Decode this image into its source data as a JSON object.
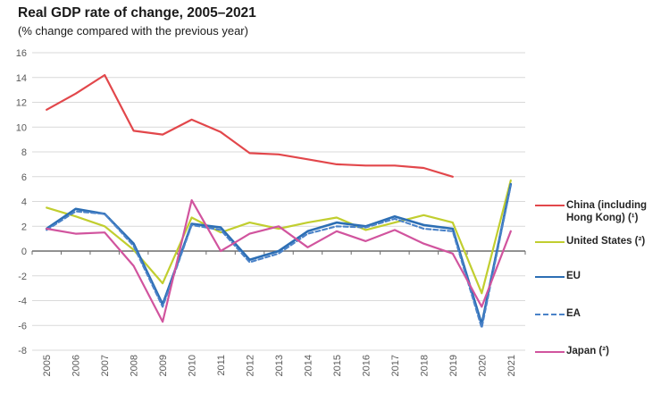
{
  "header": {
    "title": "Real GDP rate of change, 2005–2021",
    "subtitle": "(% change compared with the previous year)"
  },
  "chart_data": {
    "type": "line",
    "title": "Real GDP rate of change, 2005–2021",
    "subtitle": "(% change compared with the previous year)",
    "x": [
      "2005",
      "2006",
      "2007",
      "2008",
      "2009",
      "2010",
      "2011",
      "2012",
      "2013",
      "2014",
      "2015",
      "2016",
      "2017",
      "2018",
      "2019",
      "2020",
      "2021"
    ],
    "ylim": [
      -8,
      16
    ],
    "ytick_step": 2,
    "yticks": [
      "16",
      "14",
      "12",
      "10",
      "8",
      "6",
      "4",
      "2",
      "0",
      "-2",
      "-4",
      "-6",
      "-8"
    ],
    "grid": true,
    "legend_position": "right",
    "axis_colors": {
      "gridline": "#d9d9d9",
      "zero_axis": "#6d6d6d",
      "tick_text": "#595959"
    },
    "series": [
      {
        "id": "china",
        "name": "China (including Hong Kong) (¹)",
        "color": "#e2474b",
        "dash": null,
        "width": 2.2,
        "values": [
          11.4,
          12.7,
          14.2,
          9.7,
          9.4,
          10.6,
          9.6,
          7.9,
          7.8,
          7.4,
          7.0,
          6.9,
          6.9,
          6.7,
          6.0,
          null,
          null
        ]
      },
      {
        "id": "united-states",
        "name": "United States (²)",
        "color": "#c1ce2f",
        "dash": null,
        "width": 2.2,
        "values": [
          3.5,
          2.8,
          2.0,
          0.1,
          -2.6,
          2.7,
          1.5,
          2.3,
          1.8,
          2.3,
          2.7,
          1.7,
          2.3,
          2.9,
          2.3,
          -3.4,
          5.7
        ]
      },
      {
        "id": "eu",
        "name": "EU",
        "color": "#2c6eb4",
        "dash": null,
        "width": 2.6,
        "values": [
          1.8,
          3.4,
          3.0,
          0.6,
          -4.3,
          2.2,
          1.9,
          -0.7,
          0.0,
          1.6,
          2.3,
          2.0,
          2.8,
          2.1,
          1.8,
          -5.9,
          5.4
        ]
      },
      {
        "id": "ea",
        "name": "EA",
        "color": "#4a82c8",
        "dash": "5,3",
        "width": 2.1,
        "values": [
          1.7,
          3.2,
          3.0,
          0.4,
          -4.5,
          2.1,
          1.7,
          -0.9,
          -0.2,
          1.4,
          2.0,
          1.9,
          2.6,
          1.8,
          1.6,
          -6.2,
          5.3
        ]
      },
      {
        "id": "japan",
        "name": "Japan (²)",
        "color": "#d1549e",
        "dash": null,
        "width": 2.2,
        "values": [
          1.8,
          1.4,
          1.5,
          -1.2,
          -5.7,
          4.1,
          0.0,
          1.4,
          2.0,
          0.3,
          1.6,
          0.8,
          1.7,
          0.6,
          -0.2,
          -4.5,
          1.6
        ]
      }
    ]
  }
}
